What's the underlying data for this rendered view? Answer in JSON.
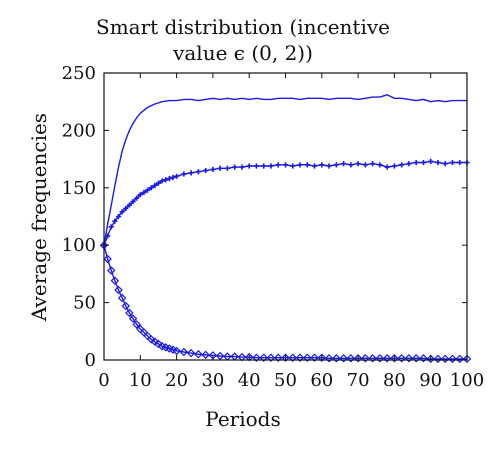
{
  "chart_data": {
    "type": "line",
    "title_lines": [
      "Smart distribution (incentive",
      "value ϵ (0, 2))"
    ],
    "xlabel": "Periods",
    "ylabel": "Average frequencies",
    "xlim": [
      0,
      100
    ],
    "ylim": [
      0,
      250
    ],
    "xticks": [
      0,
      10,
      20,
      30,
      40,
      50,
      60,
      70,
      80,
      90,
      100
    ],
    "yticks": [
      0,
      50,
      100,
      150,
      200,
      250
    ],
    "grid": false,
    "line_color": "#1a1ae6",
    "series": [
      {
        "marker": "none",
        "points": [
          [
            0,
            100
          ],
          [
            1,
            118
          ],
          [
            2,
            135
          ],
          [
            3,
            152
          ],
          [
            4,
            168
          ],
          [
            5,
            182
          ],
          [
            6,
            192
          ],
          [
            7,
            200
          ],
          [
            8,
            206
          ],
          [
            9,
            211
          ],
          [
            10,
            215
          ],
          [
            12,
            220
          ],
          [
            14,
            223
          ],
          [
            16,
            225
          ],
          [
            18,
            226
          ],
          [
            20,
            226
          ],
          [
            22,
            227
          ],
          [
            24,
            227
          ],
          [
            26,
            226
          ],
          [
            28,
            227
          ],
          [
            30,
            228
          ],
          [
            32,
            227
          ],
          [
            34,
            228
          ],
          [
            36,
            227
          ],
          [
            38,
            228
          ],
          [
            40,
            227
          ],
          [
            42,
            228
          ],
          [
            44,
            227
          ],
          [
            46,
            227
          ],
          [
            48,
            228
          ],
          [
            50,
            228
          ],
          [
            52,
            228
          ],
          [
            54,
            227
          ],
          [
            56,
            228
          ],
          [
            58,
            228
          ],
          [
            60,
            228
          ],
          [
            62,
            227
          ],
          [
            64,
            228
          ],
          [
            66,
            228
          ],
          [
            68,
            228
          ],
          [
            70,
            227
          ],
          [
            72,
            228
          ],
          [
            74,
            229
          ],
          [
            76,
            229
          ],
          [
            78,
            231
          ],
          [
            80,
            228
          ],
          [
            82,
            228
          ],
          [
            84,
            227
          ],
          [
            86,
            226
          ],
          [
            88,
            227
          ],
          [
            90,
            225
          ],
          [
            92,
            226
          ],
          [
            94,
            225
          ],
          [
            96,
            226
          ],
          [
            98,
            226
          ],
          [
            100,
            226
          ]
        ]
      },
      {
        "marker": "plus",
        "points": [
          [
            0,
            100
          ],
          [
            1,
            108
          ],
          [
            2,
            116
          ],
          [
            3,
            121
          ],
          [
            4,
            125
          ],
          [
            5,
            129
          ],
          [
            6,
            132
          ],
          [
            7,
            135
          ],
          [
            8,
            138
          ],
          [
            9,
            141
          ],
          [
            10,
            144
          ],
          [
            11,
            146
          ],
          [
            12,
            148
          ],
          [
            13,
            150
          ],
          [
            14,
            152
          ],
          [
            15,
            154
          ],
          [
            16,
            156
          ],
          [
            17,
            157
          ],
          [
            18,
            158
          ],
          [
            19,
            159
          ],
          [
            20,
            160
          ],
          [
            22,
            162
          ],
          [
            24,
            163
          ],
          [
            26,
            164
          ],
          [
            28,
            165
          ],
          [
            30,
            166
          ],
          [
            32,
            167
          ],
          [
            34,
            167
          ],
          [
            36,
            168
          ],
          [
            38,
            168
          ],
          [
            40,
            169
          ],
          [
            42,
            169
          ],
          [
            44,
            169
          ],
          [
            46,
            169
          ],
          [
            48,
            170
          ],
          [
            50,
            170
          ],
          [
            52,
            169
          ],
          [
            54,
            170
          ],
          [
            56,
            170
          ],
          [
            58,
            169
          ],
          [
            60,
            170
          ],
          [
            62,
            169
          ],
          [
            64,
            170
          ],
          [
            66,
            171
          ],
          [
            68,
            170
          ],
          [
            70,
            171
          ],
          [
            72,
            170
          ],
          [
            74,
            171
          ],
          [
            76,
            170
          ],
          [
            78,
            168
          ],
          [
            80,
            169
          ],
          [
            82,
            170
          ],
          [
            84,
            171
          ],
          [
            86,
            172
          ],
          [
            88,
            172
          ],
          [
            90,
            173
          ],
          [
            92,
            172
          ],
          [
            94,
            171
          ],
          [
            96,
            172
          ],
          [
            98,
            172
          ],
          [
            100,
            172
          ]
        ]
      },
      {
        "marker": "diamond",
        "points": [
          [
            0,
            100
          ],
          [
            1,
            88
          ],
          [
            2,
            78
          ],
          [
            3,
            69
          ],
          [
            4,
            61
          ],
          [
            5,
            54
          ],
          [
            6,
            47
          ],
          [
            7,
            41
          ],
          [
            8,
            36
          ],
          [
            9,
            31
          ],
          [
            10,
            27
          ],
          [
            11,
            24
          ],
          [
            12,
            21
          ],
          [
            13,
            18
          ],
          [
            14,
            16
          ],
          [
            15,
            14
          ],
          [
            16,
            12
          ],
          [
            17,
            11
          ],
          [
            18,
            10
          ],
          [
            19,
            9
          ],
          [
            20,
            8
          ],
          [
            22,
            7
          ],
          [
            24,
            6
          ],
          [
            26,
            5
          ],
          [
            28,
            4.5
          ],
          [
            30,
            4
          ],
          [
            32,
            3.5
          ],
          [
            34,
            3
          ],
          [
            36,
            3
          ],
          [
            38,
            2.5
          ],
          [
            40,
            2.5
          ],
          [
            42,
            2
          ],
          [
            44,
            2
          ],
          [
            46,
            2
          ],
          [
            48,
            2
          ],
          [
            50,
            2
          ],
          [
            52,
            2
          ],
          [
            54,
            2
          ],
          [
            56,
            2
          ],
          [
            58,
            2
          ],
          [
            60,
            2
          ],
          [
            62,
            1.5
          ],
          [
            64,
            1.5
          ],
          [
            66,
            1.5
          ],
          [
            68,
            1.5
          ],
          [
            70,
            1.5
          ],
          [
            72,
            1.5
          ],
          [
            74,
            1.5
          ],
          [
            76,
            1.5
          ],
          [
            78,
            1.5
          ],
          [
            80,
            1.5
          ],
          [
            82,
            1.5
          ],
          [
            84,
            1.5
          ],
          [
            86,
            1.5
          ],
          [
            88,
            1.5
          ],
          [
            90,
            1
          ],
          [
            92,
            1
          ],
          [
            94,
            1
          ],
          [
            96,
            1
          ],
          [
            98,
            1
          ],
          [
            100,
            1
          ]
        ]
      }
    ]
  }
}
